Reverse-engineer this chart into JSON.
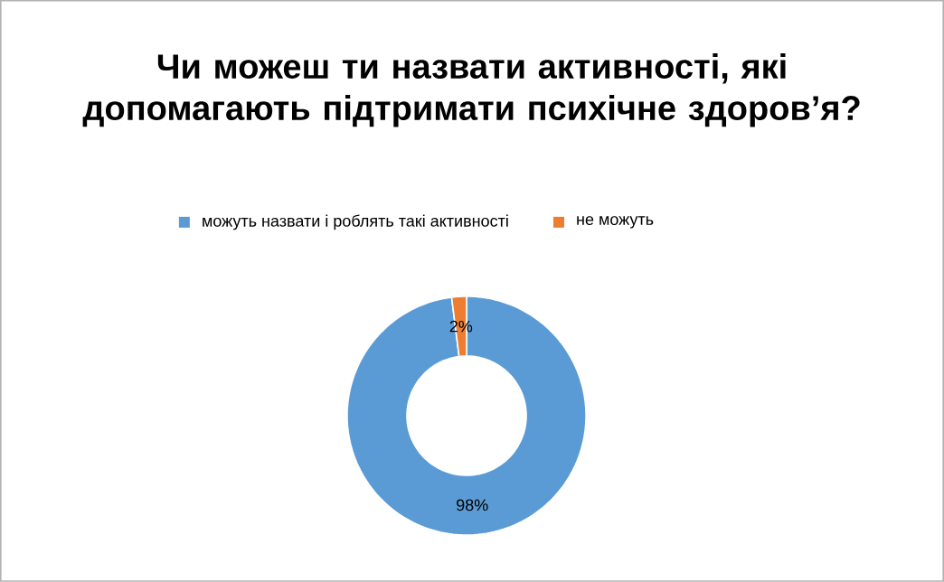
{
  "chart_data": {
    "type": "donut",
    "title": "Чи можеш ти назвати активності, які допомагають підтримати психічне здоров’я?",
    "categories": [
      "можуть назвати і роблять такі активності",
      "не можуть"
    ],
    "values": [
      98,
      2
    ],
    "value_labels": [
      "98%",
      "2%"
    ],
    "colors": [
      "#5b9bd5",
      "#ed7d31"
    ],
    "legend": "top"
  }
}
